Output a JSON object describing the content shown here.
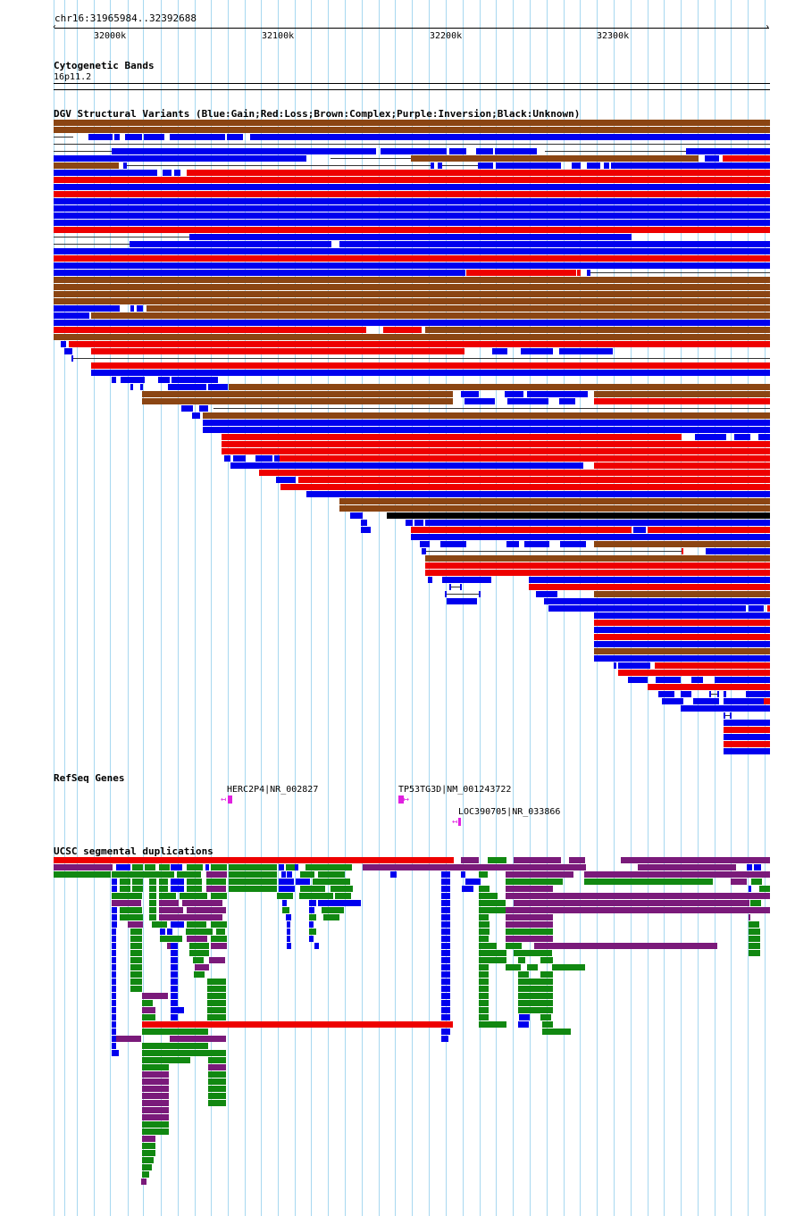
{
  "browser": {
    "region": "chr16:31965984..32392688",
    "ticks": [
      "32000k",
      "32100k",
      "32200k",
      "32300k"
    ]
  },
  "tracks": {
    "cytobands": {
      "title": "Cytogenetic Bands",
      "band": "16p11.2"
    },
    "dgv": {
      "title": "DGV Structural Variants (Blue:Gain;Red:Loss;Brown:Complex;Purple:Inversion;Black:Unknown)"
    },
    "refseq": {
      "title": "RefSeq Genes",
      "genes": [
        {
          "label": "HERC2P4|NR_002827",
          "strand": "-"
        },
        {
          "label": "TP53TG3D|NM_001243722",
          "strand": "+"
        },
        {
          "label": "LOC390705|NR_033866",
          "strand": "-"
        }
      ]
    },
    "segdup": {
      "title": "UCSC segmental duplications"
    }
  },
  "colors": {
    "gain": "#0000ee",
    "loss": "#ee0000",
    "complex": "#8b4513",
    "unknown": "#000000",
    "segdup_green": "#118811",
    "segdup_purple": "#7a1a7a",
    "segdup_red": "#ee0000",
    "segdup_blue": "#0000ee",
    "grid": "#a7d8f0",
    "gene": "#e020e0"
  }
}
